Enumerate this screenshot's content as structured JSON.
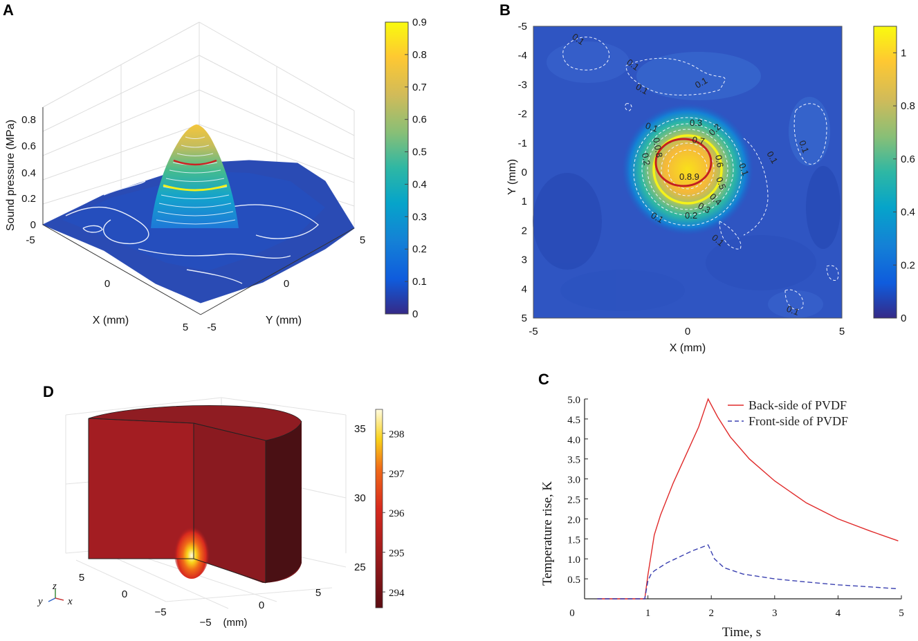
{
  "panels": {
    "A": "A",
    "B": "B",
    "C": "C",
    "D": "D"
  },
  "colors": {
    "parula_low": "#352a87",
    "parula_mid": "#21a9a1",
    "parula_high": "#f9fb0e",
    "red_series": "#e02a2a",
    "blue_series": "#3a40b0",
    "ring_red": "#c42020",
    "ring_yellow": "#ecec1a",
    "tissue": "#8c1c22"
  },
  "chart_data": [
    {
      "id": "A",
      "type": "surface3d",
      "title": "",
      "zlabel": "Sound pressure (MPa)",
      "xlabel": "X (mm)",
      "ylabel": "Y (mm)",
      "z_ticks": [
        "0",
        "0.2",
        "0.4",
        "0.6",
        "0.8"
      ],
      "x_ticks": [
        "-5",
        "0",
        "5"
      ],
      "y_ticks": [
        "-5",
        "0",
        "5"
      ],
      "peak_value": 0.78,
      "colorbar": {
        "ticks": [
          "0",
          "0.1",
          "0.2",
          "0.3",
          "0.4",
          "0.5",
          "0.6",
          "0.7",
          "0.8",
          "0.9"
        ],
        "range": [
          0,
          0.9
        ]
      }
    },
    {
      "id": "B",
      "type": "heatmap",
      "xlabel": "X (mm)",
      "ylabel": "Y (mm)",
      "x_ticks": [
        "-5",
        "0",
        "5"
      ],
      "y_ticks": [
        "-5",
        "-4",
        "-3",
        "-2",
        "-1",
        "0",
        "1",
        "2",
        "3",
        "4",
        "5"
      ],
      "contour_labels": [
        "0.1",
        "0.1",
        "0.1",
        "0.1",
        "0.1",
        "0.1",
        "0.1",
        "0.1",
        "0.1",
        "0.1",
        "0.1",
        "0.2",
        "0.2",
        "0.3",
        "0.3",
        "0.4",
        "0.5",
        "0.6",
        "0.7",
        "0.8.9",
        "0.0.8",
        "0.2"
      ],
      "colorbar": {
        "ticks": [
          "0",
          "0.2",
          "0.4",
          "0.6",
          "0.8",
          "1"
        ],
        "range": [
          0,
          1.1
        ]
      }
    },
    {
      "id": "C",
      "type": "line",
      "xlabel": "Time, s",
      "ylabel": "Temperature rise, K",
      "xlim": [
        0,
        5
      ],
      "ylim": [
        0,
        5
      ],
      "x_ticks": [
        "0",
        "1",
        "2",
        "3",
        "4",
        "5"
      ],
      "y_ticks": [
        "0.5",
        "1.0",
        "1.5",
        "2.0",
        "2.5",
        "3.0",
        "3.5",
        "4.0",
        "4.5",
        "5.0"
      ],
      "series": [
        {
          "name": "Back-side of PVDF",
          "style": "solid",
          "x": [
            0.2,
            0.95,
            1.0,
            1.1,
            1.2,
            1.4,
            1.6,
            1.8,
            1.95,
            2.1,
            2.3,
            2.6,
            3.0,
            3.5,
            4.0,
            4.5,
            4.95
          ],
          "y": [
            0.0,
            0.0,
            0.6,
            1.6,
            2.1,
            2.9,
            3.6,
            4.3,
            5.0,
            4.55,
            4.05,
            3.5,
            2.95,
            2.4,
            2.0,
            1.7,
            1.45
          ]
        },
        {
          "name": "Front-side of PVDF",
          "style": "dashed",
          "x": [
            0.2,
            0.95,
            1.0,
            1.05,
            1.1,
            1.3,
            1.5,
            1.7,
            1.95,
            2.05,
            2.2,
            2.5,
            3.0,
            3.5,
            4.0,
            4.5,
            4.95
          ],
          "y": [
            0.0,
            0.0,
            0.45,
            0.62,
            0.7,
            0.9,
            1.05,
            1.2,
            1.35,
            1.0,
            0.78,
            0.62,
            0.5,
            0.42,
            0.35,
            0.3,
            0.25
          ]
        }
      ]
    },
    {
      "id": "D",
      "type": "volume3d",
      "z_ticks": [
        "35",
        "30",
        "25"
      ],
      "x_ticks": [
        "5",
        "0",
        "−5"
      ],
      "y_ticks": [
        "5",
        "0"
      ],
      "unit_label": "(mm)",
      "colorbar": {
        "ticks": [
          "298",
          "297",
          "296",
          "295",
          "294"
        ],
        "range": [
          293.6,
          298.6
        ]
      },
      "triad": {
        "z": "z",
        "y": "y",
        "x": "x"
      }
    }
  ]
}
